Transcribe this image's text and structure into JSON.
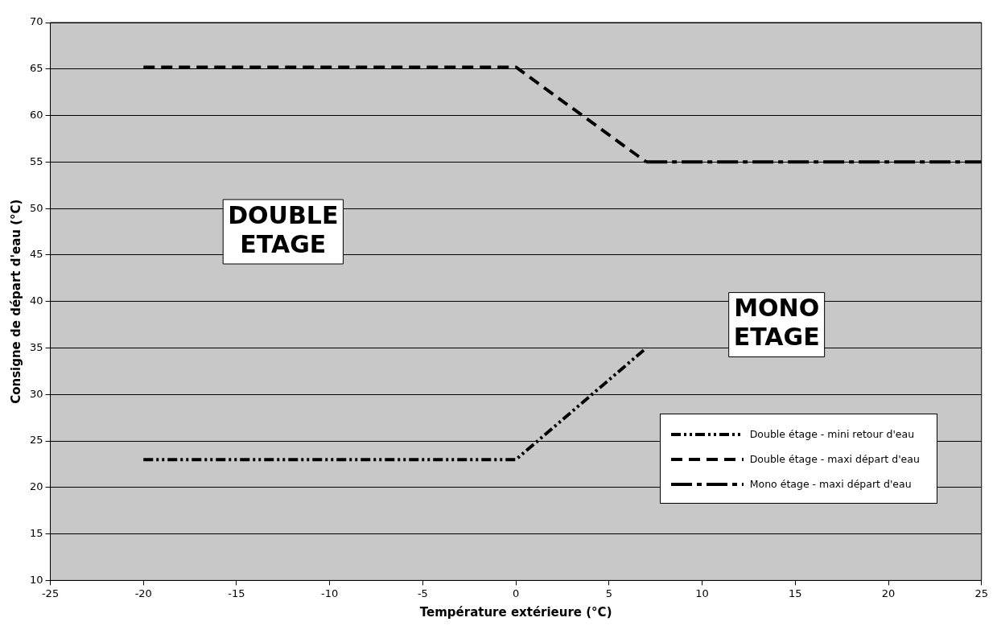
{
  "chart_data": {
    "type": "line",
    "xlabel": "Température extérieure (°C)",
    "ylabel": "Consigne de départ d'eau (°C)",
    "xlim": [
      -25,
      25
    ],
    "xticks": [
      -25,
      -20,
      -15,
      -10,
      -5,
      0,
      5,
      10,
      15,
      20,
      25
    ],
    "ylim": [
      10,
      70
    ],
    "yticks": [
      10,
      15,
      20,
      25,
      30,
      35,
      40,
      45,
      50,
      55,
      60,
      65,
      70
    ],
    "grid": "y",
    "legend": "bottom right",
    "marker": "none",
    "series": [
      {
        "name": "Double étage - mini retour d'eau",
        "color": "#000000",
        "line_style": "dashed",
        "x": [
          -20,
          0,
          7
        ],
        "values": [
          23,
          23,
          35
        ]
      },
      {
        "name": "Double étage - maxi départ d'eau",
        "color": "#000000",
        "line_style": "dashed",
        "x": [
          -20,
          0,
          7
        ],
        "values": [
          65.2,
          65.2,
          55
        ]
      },
      {
        "name": "Mono étage - maxi départ d'eau",
        "color": "#000000",
        "line_style": "dashed",
        "x": [
          7,
          25
        ],
        "values": [
          55,
          55
        ]
      }
    ],
    "annotations": [
      "DOUBLE\nETAGE",
      "MONO\nETAGE"
    ]
  }
}
